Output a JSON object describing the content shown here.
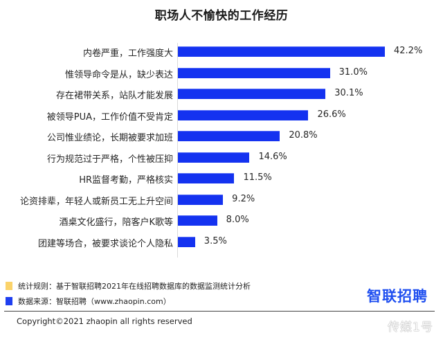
{
  "title": "职场人不愉快的工作经历",
  "chart_data": {
    "type": "bar",
    "orientation": "horizontal",
    "title": "职场人不愉快的工作经历",
    "xlabel": "",
    "ylabel": "",
    "categories": [
      "内卷严重，工作强度大",
      "惟领导命令是从，缺少表达",
      "存在裙带关系，站队才能发展",
      "被领导PUA，工作价值不受肯定",
      "公司惟业绩论，长期被要求加班",
      "行为规范过于严格，个性被压抑",
      "HR监督考勤，严格核实",
      "论资排辈，年轻人或新员工无上升空间",
      "酒桌文化盛行，陪客户K歌等",
      "团建等场合，被要求谈论个人隐私"
    ],
    "values": [
      42.2,
      31.0,
      30.1,
      26.6,
      20.8,
      14.6,
      11.5,
      9.2,
      8.0,
      3.5
    ],
    "value_labels": [
      "42.2%",
      "31.0%",
      "30.1%",
      "26.6%",
      "20.8%",
      "14.6%",
      "11.5%",
      "9.2%",
      "8.0%",
      "3.5%"
    ],
    "unit": "%",
    "grid": false,
    "bar_color": "#1432f0"
  },
  "rows": [
    {
      "label": "内卷严重，工作强度大",
      "value": 42.2,
      "text": "42.2%"
    },
    {
      "label": "惟领导命令是从，缺少表达",
      "value": 31.0,
      "text": "31.0%"
    },
    {
      "label": "存在裙带关系，站队才能发展",
      "value": 30.1,
      "text": "30.1%"
    },
    {
      "label": "被领导PUA，工作价值不受肯定",
      "value": 26.6,
      "text": "26.6%"
    },
    {
      "label": "公司惟业绩论，长期被要求加班",
      "value": 20.8,
      "text": "20.8%"
    },
    {
      "label": "行为规范过于严格，个性被压抑",
      "value": 14.6,
      "text": "14.6%"
    },
    {
      "label": "HR监督考勤，严格核实",
      "value": 11.5,
      "text": "11.5%"
    },
    {
      "label": "论资排辈，年轻人或新员工无上升空间",
      "value": 9.2,
      "text": "9.2%"
    },
    {
      "label": "酒桌文化盛行，陪客户K歌等",
      "value": 8.0,
      "text": "8.0%"
    },
    {
      "label": "团建等场合，被要求谈论个人隐私",
      "value": 3.5,
      "text": "3.5%"
    }
  ],
  "notes": {
    "rule": "统计规则：基于智联招聘2021年在线招聘数据库的数据监测统计分析",
    "rule_color": "#fbd36a",
    "source": "数据来源：智联招聘（www.zhaopin.com）",
    "source_color": "#1f3ff0"
  },
  "logo": {
    "part1": "智",
    "part2": "联招聘",
    "color": "#1f4ff0",
    "accent": "#f3c220"
  },
  "copyright": "Copyright©2021 zhaopin  all rights reserved",
  "watermark": "传媒1号"
}
